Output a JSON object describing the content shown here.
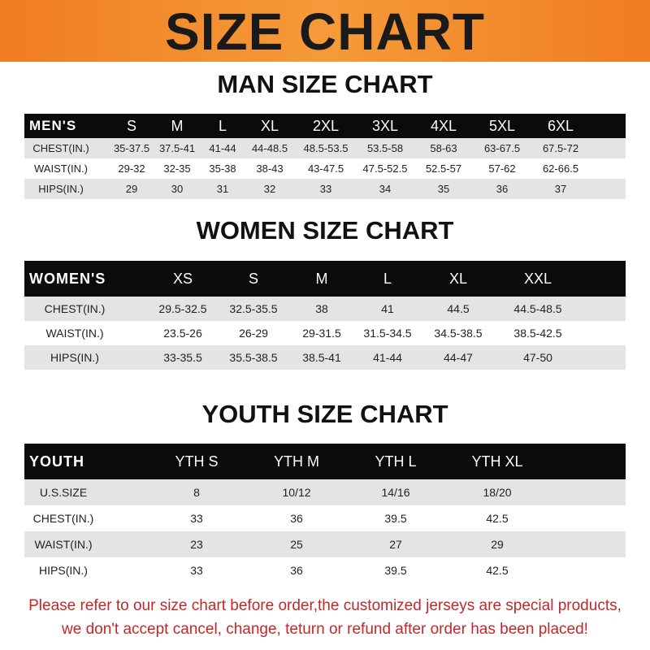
{
  "banner": {
    "title": "SIZE CHART",
    "color": "#f07d1f"
  },
  "men": {
    "title": "MAN SIZE CHART",
    "header": [
      "MEN'S",
      "S",
      "M",
      "L",
      "XL",
      "2XL",
      "3XL",
      "4XL",
      "5XL",
      "6XL"
    ],
    "rows": [
      [
        "CHEST(IN.)",
        "35-37.5",
        "37.5-41",
        "41-44",
        "44-48.5",
        "48.5-53.5",
        "53.5-58",
        "58-63",
        "63-67.5",
        "67.5-72"
      ],
      [
        "WAIST(IN.)",
        "29-32",
        "32-35",
        "35-38",
        "38-43",
        "43-47.5",
        "47.5-52.5",
        "52.5-57",
        "57-62",
        "62-66.5"
      ],
      [
        "HIPS(IN.)",
        "29",
        "30",
        "31",
        "32",
        "33",
        "34",
        "35",
        "36",
        "37"
      ]
    ]
  },
  "women": {
    "title": "WOMEN SIZE CHART",
    "header": [
      "WOMEN'S",
      "XS",
      "S",
      "M",
      "L",
      "XL",
      "XXL"
    ],
    "rows": [
      [
        "CHEST(IN.)",
        "29.5-32.5",
        "32.5-35.5",
        "38",
        "41",
        "44.5",
        "44.5-48.5"
      ],
      [
        "WAIST(IN.)",
        "23.5-26",
        "26-29",
        "29-31.5",
        "31.5-34.5",
        "34.5-38.5",
        "38.5-42.5"
      ],
      [
        "HIPS(IN.)",
        "33-35.5",
        "35.5-38.5",
        "38.5-41",
        "41-44",
        "44-47",
        "47-50"
      ]
    ]
  },
  "youth": {
    "title": "YOUTH SIZE CHART",
    "header": [
      "YOUTH",
      "YTH S",
      "YTH M",
      "YTH L",
      "YTH XL"
    ],
    "rows": [
      [
        "U.S.SIZE",
        "8",
        "10/12",
        "14/16",
        "18/20"
      ],
      [
        "CHEST(IN.)",
        "33",
        "36",
        "39.5",
        "42.5"
      ],
      [
        "WAIST(IN.)",
        "23",
        "25",
        "27",
        "29"
      ],
      [
        "HIPS(IN.)",
        "33",
        "36",
        "39.5",
        "42.5"
      ]
    ]
  },
  "footer": {
    "line1": "Please refer to our size chart before order,the customized jerseys are special products,",
    "line2": "we don't accept cancel, change, teturn or refund after order has been placed!",
    "color": "#c0282c"
  }
}
